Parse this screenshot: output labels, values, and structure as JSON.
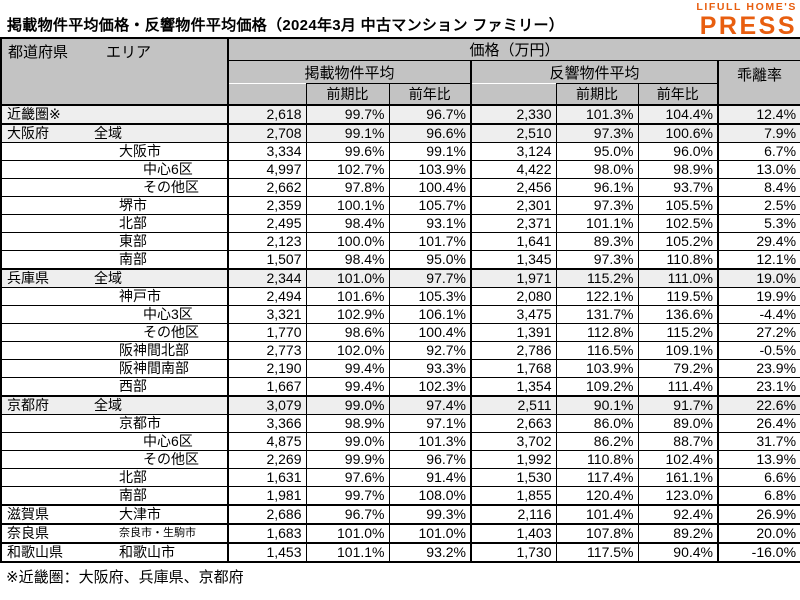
{
  "title": "掲載物件平均価格・反響物件平均価格（2024年3月 中古マンション ファミリー）",
  "logo": {
    "line1": "LIFULL HOME'S",
    "line2": "PRESS",
    "color": "#E85E0F"
  },
  "colors": {
    "header_bg": "#C3C3C3",
    "shaded_row_bg": "#EEEEEE",
    "border": "#000000"
  },
  "footnote": "※近畿圏：大阪府、兵庫県、京都府",
  "table": {
    "header": {
      "region_pref": "都道府県",
      "region_area": "エリア",
      "price_group": "価格（万円）",
      "listed_group": "掲載物件平均",
      "response_group": "反響物件平均",
      "deviation": "乖離率",
      "prev_period": "前期比",
      "prev_year": "前年比"
    },
    "column_semantics": [
      "listed-avg-price",
      "listed-prev-period-ratio",
      "listed-prev-year-ratio",
      "response-avg-price",
      "response-prev-period-ratio",
      "response-prev-year-ratio",
      "deviation-rate"
    ],
    "rows": [
      {
        "pref": "近畿圏※",
        "area": "",
        "indent": 0,
        "shaded": true,
        "section": true,
        "values": [
          "2,618",
          "99.7%",
          "96.7%",
          "2,330",
          "101.3%",
          "104.4%",
          "12.4%"
        ]
      },
      {
        "pref": "大阪府",
        "area": "全域",
        "indent": 1,
        "shaded": true,
        "section": true,
        "values": [
          "2,708",
          "99.1%",
          "96.6%",
          "2,510",
          "97.3%",
          "100.6%",
          "7.9%"
        ]
      },
      {
        "pref": "",
        "area": "大阪市",
        "indent": 2,
        "shaded": false,
        "section": false,
        "values": [
          "3,334",
          "99.6%",
          "99.1%",
          "3,124",
          "95.0%",
          "96.0%",
          "6.7%"
        ]
      },
      {
        "pref": "",
        "area": "中心6区",
        "indent": 3,
        "shaded": false,
        "section": false,
        "values": [
          "4,997",
          "102.7%",
          "103.9%",
          "4,422",
          "98.0%",
          "98.9%",
          "13.0%"
        ]
      },
      {
        "pref": "",
        "area": "その他区",
        "indent": 3,
        "shaded": false,
        "section": false,
        "values": [
          "2,662",
          "97.8%",
          "100.4%",
          "2,456",
          "96.1%",
          "93.7%",
          "8.4%"
        ]
      },
      {
        "pref": "",
        "area": "堺市",
        "indent": 2,
        "shaded": false,
        "section": false,
        "values": [
          "2,359",
          "100.1%",
          "105.7%",
          "2,301",
          "97.3%",
          "105.5%",
          "2.5%"
        ]
      },
      {
        "pref": "",
        "area": "北部",
        "indent": 2,
        "shaded": false,
        "section": false,
        "values": [
          "2,495",
          "98.4%",
          "93.1%",
          "2,371",
          "101.1%",
          "102.5%",
          "5.3%"
        ]
      },
      {
        "pref": "",
        "area": "東部",
        "indent": 2,
        "shaded": false,
        "section": false,
        "values": [
          "2,123",
          "100.0%",
          "101.7%",
          "1,641",
          "89.3%",
          "105.2%",
          "29.4%"
        ]
      },
      {
        "pref": "",
        "area": "南部",
        "indent": 2,
        "shaded": false,
        "section": false,
        "values": [
          "1,507",
          "98.4%",
          "95.0%",
          "1,345",
          "97.3%",
          "110.8%",
          "12.1%"
        ]
      },
      {
        "pref": "兵庫県",
        "area": "全域",
        "indent": 1,
        "shaded": true,
        "section": true,
        "values": [
          "2,344",
          "101.0%",
          "97.7%",
          "1,971",
          "115.2%",
          "111.0%",
          "19.0%"
        ]
      },
      {
        "pref": "",
        "area": "神戸市",
        "indent": 2,
        "shaded": false,
        "section": false,
        "values": [
          "2,494",
          "101.6%",
          "105.3%",
          "2,080",
          "122.1%",
          "119.5%",
          "19.9%"
        ]
      },
      {
        "pref": "",
        "area": "中心3区",
        "indent": 3,
        "shaded": false,
        "section": false,
        "values": [
          "3,321",
          "102.9%",
          "106.1%",
          "3,475",
          "131.7%",
          "136.6%",
          "-4.4%"
        ]
      },
      {
        "pref": "",
        "area": "その他区",
        "indent": 3,
        "shaded": false,
        "section": false,
        "values": [
          "1,770",
          "98.6%",
          "100.4%",
          "1,391",
          "112.8%",
          "115.2%",
          "27.2%"
        ]
      },
      {
        "pref": "",
        "area": "阪神間北部",
        "indent": 2,
        "shaded": false,
        "section": false,
        "values": [
          "2,773",
          "102.0%",
          "92.7%",
          "2,786",
          "116.5%",
          "109.1%",
          "-0.5%"
        ]
      },
      {
        "pref": "",
        "area": "阪神間南部",
        "indent": 2,
        "shaded": false,
        "section": false,
        "values": [
          "2,190",
          "99.4%",
          "93.3%",
          "1,768",
          "103.9%",
          "79.2%",
          "23.9%"
        ]
      },
      {
        "pref": "",
        "area": "西部",
        "indent": 2,
        "shaded": false,
        "section": false,
        "values": [
          "1,667",
          "99.4%",
          "102.3%",
          "1,354",
          "109.2%",
          "111.4%",
          "23.1%"
        ]
      },
      {
        "pref": "京都府",
        "area": "全域",
        "indent": 1,
        "shaded": true,
        "section": true,
        "values": [
          "3,079",
          "99.0%",
          "97.4%",
          "2,511",
          "90.1%",
          "91.7%",
          "22.6%"
        ]
      },
      {
        "pref": "",
        "area": "京都市",
        "indent": 2,
        "shaded": false,
        "section": false,
        "values": [
          "3,366",
          "98.9%",
          "97.1%",
          "2,663",
          "86.0%",
          "89.0%",
          "26.4%"
        ]
      },
      {
        "pref": "",
        "area": "中心6区",
        "indent": 3,
        "shaded": false,
        "section": false,
        "values": [
          "4,875",
          "99.0%",
          "101.3%",
          "3,702",
          "86.2%",
          "88.7%",
          "31.7%"
        ]
      },
      {
        "pref": "",
        "area": "その他区",
        "indent": 3,
        "shaded": false,
        "section": false,
        "values": [
          "2,269",
          "99.9%",
          "96.7%",
          "1,992",
          "110.8%",
          "102.4%",
          "13.9%"
        ]
      },
      {
        "pref": "",
        "area": "北部",
        "indent": 2,
        "shaded": false,
        "section": false,
        "values": [
          "1,631",
          "97.6%",
          "91.4%",
          "1,530",
          "117.4%",
          "161.1%",
          "6.6%"
        ]
      },
      {
        "pref": "",
        "area": "南部",
        "indent": 2,
        "shaded": false,
        "section": false,
        "values": [
          "1,981",
          "99.7%",
          "108.0%",
          "1,855",
          "120.4%",
          "123.0%",
          "6.8%"
        ]
      },
      {
        "pref": "滋賀県",
        "area": "大津市",
        "indent": 2,
        "shaded": false,
        "section": true,
        "values": [
          "2,686",
          "96.7%",
          "99.3%",
          "2,116",
          "101.4%",
          "92.4%",
          "26.9%"
        ]
      },
      {
        "pref": "奈良県",
        "area": "奈良市・生駒市",
        "indent": 2,
        "small": true,
        "shaded": false,
        "section": true,
        "values": [
          "1,683",
          "101.0%",
          "101.0%",
          "1,403",
          "107.8%",
          "89.2%",
          "20.0%"
        ]
      },
      {
        "pref": "和歌山県",
        "area": "和歌山市",
        "indent": 2,
        "shaded": false,
        "section": true,
        "values": [
          "1,453",
          "101.1%",
          "93.2%",
          "1,730",
          "117.5%",
          "90.4%",
          "-16.0%"
        ]
      }
    ]
  }
}
